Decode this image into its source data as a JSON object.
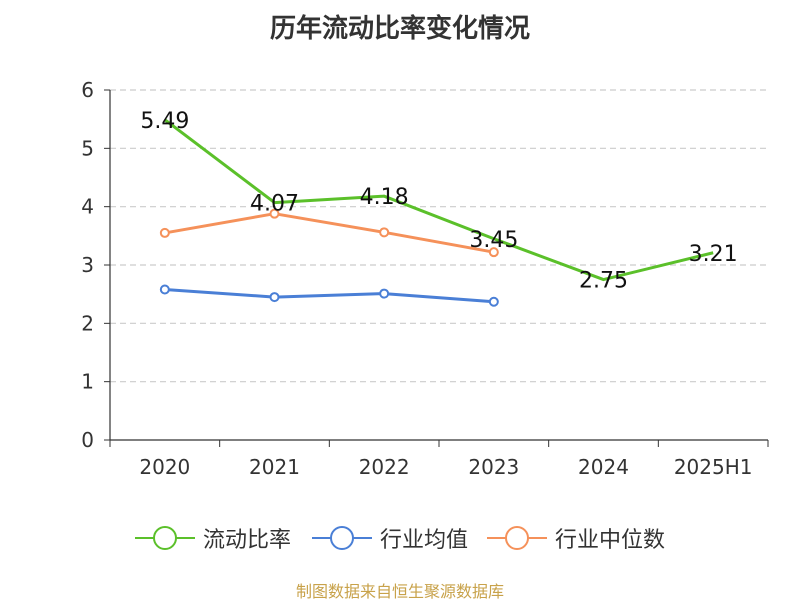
{
  "title": "历年流动比率变化情况",
  "source": "制图数据来自恒生聚源数据库",
  "chart_data": {
    "type": "line",
    "categories": [
      "2020",
      "2021",
      "2022",
      "2023",
      "2024",
      "2025H1"
    ],
    "ylim": [
      0,
      6
    ],
    "yticks": [
      "0",
      "1",
      "2",
      "3",
      "4",
      "5",
      "6"
    ],
    "grid": true,
    "legend_position": "bottom",
    "series": [
      {
        "name": "流动比率",
        "color": "#5bc02a",
        "values": [
          5.49,
          4.07,
          4.18,
          3.45,
          2.75,
          3.21
        ],
        "labels": [
          "5.49",
          "4.07",
          "4.18",
          "3.45",
          "2.75",
          "3.21"
        ]
      },
      {
        "name": "行业均值",
        "color": "#4a7fd6",
        "values": [
          2.58,
          2.45,
          2.51,
          2.37,
          null,
          null
        ]
      },
      {
        "name": "行业中位数",
        "color": "#f5915a",
        "values": [
          3.55,
          3.88,
          3.56,
          3.22,
          null,
          null
        ]
      }
    ]
  }
}
